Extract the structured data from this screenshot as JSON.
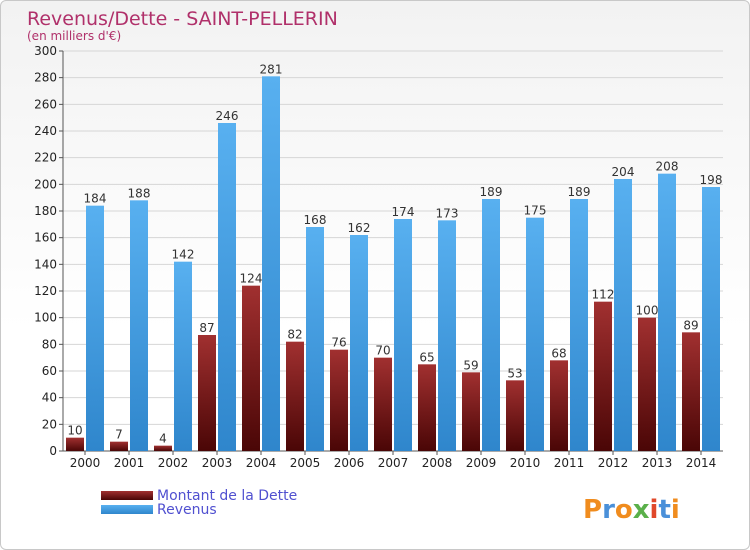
{
  "chart_data": {
    "type": "bar",
    "title": "Revenus/Dette - SAINT-PELLERIN",
    "subtitle": "(en milliers d'€)",
    "categories": [
      "2000",
      "2001",
      "2002",
      "2003",
      "2004",
      "2005",
      "2006",
      "2007",
      "2008",
      "2009",
      "2010",
      "2011",
      "2012",
      "2013",
      "2014"
    ],
    "series": [
      {
        "name": "Montant de la Dette",
        "color": "#7a1010",
        "values": [
          10,
          7,
          4,
          87,
          124,
          82,
          76,
          70,
          65,
          59,
          53,
          68,
          112,
          100,
          89
        ]
      },
      {
        "name": "Revenus",
        "color": "#4aa3e6",
        "values": [
          184,
          188,
          142,
          246,
          281,
          168,
          162,
          174,
          173,
          189,
          175,
          189,
          204,
          208,
          198
        ]
      }
    ],
    "ylim": [
      0,
      300
    ],
    "ytick_step": 20,
    "grid": true,
    "legend_position": "bottom-left"
  },
  "logo": {
    "text": "Proxiti",
    "colors": [
      "#f08c1e",
      "#4a90d9",
      "#f08c1e",
      "#5ab04a",
      "#e0482a",
      "#4a90d9",
      "#f08c1e"
    ]
  }
}
